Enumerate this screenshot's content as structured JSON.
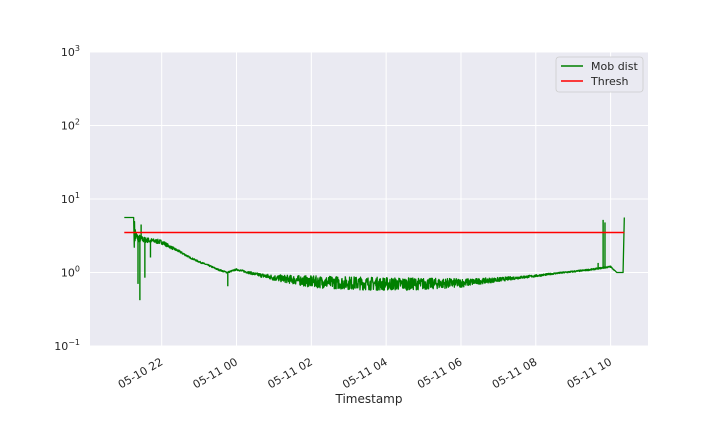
{
  "chart_data": {
    "type": "line",
    "xlabel": "Timestamp",
    "ylabel": "",
    "yscale": "log",
    "ylim": [
      0.1,
      1000
    ],
    "xlim": [
      "2022-05-10 20:05",
      "2022-05-11 11:00"
    ],
    "grid": true,
    "legend_position": "upper-right",
    "x_ticks": [
      {
        "at": "2022-05-10 22:00",
        "label": "05-10 22"
      },
      {
        "at": "2022-05-11 00:00",
        "label": "05-11 00"
      },
      {
        "at": "2022-05-11 02:00",
        "label": "05-11 02"
      },
      {
        "at": "2022-05-11 04:00",
        "label": "05-11 04"
      },
      {
        "at": "2022-05-11 06:00",
        "label": "05-11 06"
      },
      {
        "at": "2022-05-11 08:00",
        "label": "05-11 08"
      },
      {
        "at": "2022-05-11 10:00",
        "label": "05-11 10"
      }
    ],
    "y_ticks": [
      {
        "value": 0.1,
        "base": "10",
        "exp": "−1"
      },
      {
        "value": 1,
        "base": "10",
        "exp": "0"
      },
      {
        "value": 10,
        "base": "10",
        "exp": "1"
      },
      {
        "value": 100,
        "base": "10",
        "exp": "2"
      },
      {
        "value": 1000,
        "base": "10",
        "exp": "3"
      }
    ],
    "series": [
      {
        "name": "Mob dist",
        "color": "#008000",
        "x": [
          "2022-05-10 21:00",
          "2022-05-10 21:15",
          "2022-05-10 21:16",
          "2022-05-10 21:20",
          "2022-05-10 21:30",
          "2022-05-10 21:45",
          "2022-05-10 22:00",
          "2022-05-10 22:15",
          "2022-05-10 22:30",
          "2022-05-10 22:45",
          "2022-05-10 23:00",
          "2022-05-10 23:15",
          "2022-05-10 23:30",
          "2022-05-10 23:45",
          "2022-05-11 00:00",
          "2022-05-11 00:30",
          "2022-05-11 01:00",
          "2022-05-11 01:30",
          "2022-05-11 02:00",
          "2022-05-11 03:00",
          "2022-05-11 04:00",
          "2022-05-11 05:00",
          "2022-05-11 06:00",
          "2022-05-11 06:30",
          "2022-05-11 07:00",
          "2022-05-11 07:30",
          "2022-05-11 08:00",
          "2022-05-11 08:30",
          "2022-05-11 09:00",
          "2022-05-11 09:30",
          "2022-05-11 09:45",
          "2022-05-11 10:00",
          "2022-05-11 10:10",
          "2022-05-11 10:20",
          "2022-05-11 10:22"
        ],
        "y": [
          5.6,
          5.6,
          3.5,
          3.0,
          2.8,
          2.7,
          2.6,
          2.2,
          1.9,
          1.6,
          1.4,
          1.25,
          1.1,
          1.0,
          1.1,
          0.95,
          0.85,
          0.8,
          0.75,
          0.72,
          0.7,
          0.7,
          0.72,
          0.76,
          0.8,
          0.85,
          0.9,
          0.97,
          1.03,
          1.1,
          1.15,
          1.2,
          1.0,
          1.0,
          5.6
        ],
        "band_noise_log10": [
          0,
          0,
          0.2,
          0.06,
          0.04,
          0.03,
          0.03,
          0.02,
          0.015,
          0.01,
          0.01,
          0.01,
          0.01,
          0.01,
          0.01,
          0.02,
          0.04,
          0.06,
          0.08,
          0.09,
          0.09,
          0.08,
          0.06,
          0.04,
          0.03,
          0.02,
          0.015,
          0.01,
          0.01,
          0.01,
          0.01,
          0.01,
          0,
          0,
          0
        ],
        "spikes": [
          {
            "at": "2022-05-10 21:22",
            "y": 0.7
          },
          {
            "at": "2022-05-10 21:25",
            "y": 0.42
          },
          {
            "at": "2022-05-10 21:27",
            "y": 4.5
          },
          {
            "at": "2022-05-10 21:33",
            "y": 0.85
          },
          {
            "at": "2022-05-10 21:42",
            "y": 1.6
          },
          {
            "at": "2022-05-10 23:46",
            "y": 0.65
          },
          {
            "at": "2022-05-11 09:40",
            "y": 1.35
          },
          {
            "at": "2022-05-11 09:48",
            "y": 5.2
          },
          {
            "at": "2022-05-11 09:51",
            "y": 4.8
          }
        ]
      },
      {
        "name": "Thresh",
        "color": "#ff0000",
        "x": [
          "2022-05-10 21:00",
          "2022-05-11 10:22"
        ],
        "y": [
          3.5,
          3.5
        ]
      }
    ]
  }
}
